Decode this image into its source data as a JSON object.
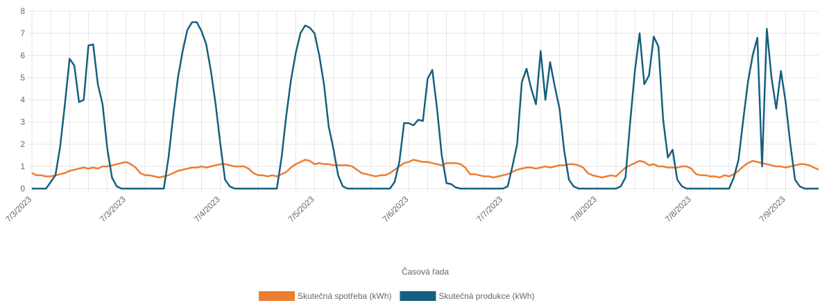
{
  "chart_data": {
    "type": "line",
    "x_label": "Časová řada",
    "categories": [
      "7/3/2023",
      null,
      null,
      null,
      null,
      null,
      null,
      null,
      null,
      null,
      null,
      null,
      null,
      null,
      null,
      null,
      null,
      null,
      null,
      null,
      "7/3/2023",
      null,
      null,
      null,
      null,
      null,
      null,
      null,
      null,
      null,
      null,
      null,
      null,
      null,
      null,
      null,
      null,
      null,
      null,
      null,
      "7/4/2023",
      null,
      null,
      null,
      null,
      null,
      null,
      null,
      null,
      null,
      null,
      null,
      null,
      null,
      null,
      null,
      null,
      null,
      null,
      null,
      "7/5/2023",
      null,
      null,
      null,
      null,
      null,
      null,
      null,
      null,
      null,
      null,
      null,
      null,
      null,
      null,
      null,
      null,
      null,
      null,
      null,
      "7/6/2023",
      null,
      null,
      null,
      null,
      null,
      null,
      null,
      null,
      null,
      null,
      null,
      null,
      null,
      null,
      null,
      null,
      null,
      null,
      null,
      "7/7/2023",
      null,
      null,
      null,
      null,
      null,
      null,
      null,
      null,
      null,
      null,
      null,
      null,
      null,
      null,
      null,
      null,
      null,
      null,
      null,
      "7/8/2023",
      null,
      null,
      null,
      null,
      null,
      null,
      null,
      null,
      null,
      null,
      null,
      null,
      null,
      null,
      null,
      null,
      null,
      null,
      null,
      "7/8/2023",
      null,
      null,
      null,
      null,
      null,
      null,
      null,
      null,
      null,
      null,
      null,
      null,
      null,
      null,
      null,
      null,
      null,
      null,
      null,
      "7/9/2023",
      null,
      null,
      null,
      null,
      null,
      null,
      null
    ],
    "series": [
      {
        "name": "Skutečná spotřeba (kWh)",
        "color": "#ed7d31",
        "values": [
          0.7,
          0.6,
          0.6,
          0.55,
          0.55,
          0.6,
          0.65,
          0.7,
          0.8,
          0.85,
          0.9,
          0.95,
          0.9,
          0.95,
          0.9,
          1.0,
          1.0,
          1.05,
          1.1,
          1.15,
          1.2,
          1.1,
          0.95,
          0.7,
          0.6,
          0.6,
          0.55,
          0.5,
          0.55,
          0.6,
          0.7,
          0.8,
          0.85,
          0.9,
          0.95,
          0.95,
          1.0,
          0.95,
          1.0,
          1.05,
          1.1,
          1.1,
          1.05,
          1.0,
          1.0,
          1.0,
          0.9,
          0.7,
          0.6,
          0.6,
          0.55,
          0.6,
          0.55,
          0.65,
          0.75,
          0.95,
          1.1,
          1.2,
          1.3,
          1.25,
          1.1,
          1.15,
          1.1,
          1.1,
          1.05,
          1.05,
          1.05,
          1.05,
          1.0,
          0.85,
          0.7,
          0.65,
          0.6,
          0.55,
          0.6,
          0.6,
          0.7,
          0.85,
          1.0,
          1.15,
          1.2,
          1.3,
          1.25,
          1.2,
          1.2,
          1.15,
          1.1,
          1.05,
          1.15,
          1.15,
          1.15,
          1.1,
          0.95,
          0.65,
          0.65,
          0.6,
          0.55,
          0.55,
          0.5,
          0.55,
          0.6,
          0.65,
          0.75,
          0.85,
          0.9,
          0.95,
          0.95,
          0.9,
          0.95,
          1.0,
          0.95,
          1.0,
          1.05,
          1.05,
          1.1,
          1.1,
          1.05,
          0.95,
          0.7,
          0.6,
          0.55,
          0.5,
          0.55,
          0.6,
          0.55,
          0.75,
          0.95,
          1.05,
          1.15,
          1.25,
          1.2,
          1.05,
          1.1,
          1.0,
          1.0,
          0.95,
          0.95,
          0.95,
          1.0,
          1.0,
          0.9,
          0.65,
          0.6,
          0.6,
          0.55,
          0.55,
          0.5,
          0.6,
          0.55,
          0.65,
          0.8,
          1.0,
          1.15,
          1.25,
          1.2,
          1.15,
          1.1,
          1.05,
          1.0,
          1.0,
          0.95,
          1.0,
          1.05,
          1.1,
          1.1,
          1.05,
          0.95,
          0.85
        ]
      },
      {
        "name": "Skutečná produkce (kWh)",
        "color": "#165f7e",
        "values": [
          0,
          0,
          0,
          0,
          0.3,
          0.6,
          1.9,
          3.8,
          5.85,
          5.55,
          3.9,
          4.0,
          6.45,
          6.5,
          4.7,
          3.8,
          1.8,
          0.5,
          0.1,
          0,
          0,
          0,
          0,
          0,
          0,
          0,
          0,
          0,
          0,
          1.4,
          3.3,
          5.0,
          6.2,
          7.15,
          7.5,
          7.5,
          7.1,
          6.5,
          5.3,
          3.8,
          2.0,
          0.4,
          0.1,
          0,
          0,
          0,
          0,
          0,
          0,
          0,
          0,
          0,
          0,
          1.4,
          3.3,
          4.9,
          6.1,
          7.0,
          7.35,
          7.25,
          7.0,
          6.0,
          4.7,
          2.8,
          1.8,
          0.6,
          0.1,
          0,
          0,
          0,
          0,
          0,
          0,
          0,
          0,
          0,
          0,
          0.3,
          1.2,
          2.95,
          2.95,
          2.85,
          3.1,
          3.05,
          4.95,
          5.35,
          3.6,
          1.5,
          0.25,
          0.2,
          0.05,
          0,
          0,
          0,
          0,
          0,
          0,
          0,
          0,
          0,
          0,
          0.1,
          1.0,
          2.0,
          4.8,
          5.4,
          4.5,
          3.8,
          6.2,
          4.0,
          5.7,
          4.6,
          3.6,
          1.7,
          0.4,
          0.1,
          0,
          0,
          0,
          0,
          0,
          0,
          0,
          0,
          0,
          0.1,
          0.5,
          3.0,
          5.3,
          7.0,
          4.7,
          5.1,
          6.85,
          6.4,
          3.1,
          1.4,
          1.75,
          0.4,
          0.1,
          0,
          0,
          0,
          0,
          0,
          0,
          0,
          0,
          0,
          0,
          0.5,
          1.3,
          3.1,
          4.8,
          6.0,
          6.8,
          1.0,
          7.2,
          5.0,
          3.6,
          5.3,
          3.9,
          2.0,
          0.4,
          0.1,
          0,
          0,
          0,
          0
        ]
      }
    ],
    "ylim": [
      0,
      8
    ],
    "yticks": [
      0,
      1,
      2,
      3,
      4,
      5,
      6,
      7,
      8
    ],
    "grid": true
  }
}
